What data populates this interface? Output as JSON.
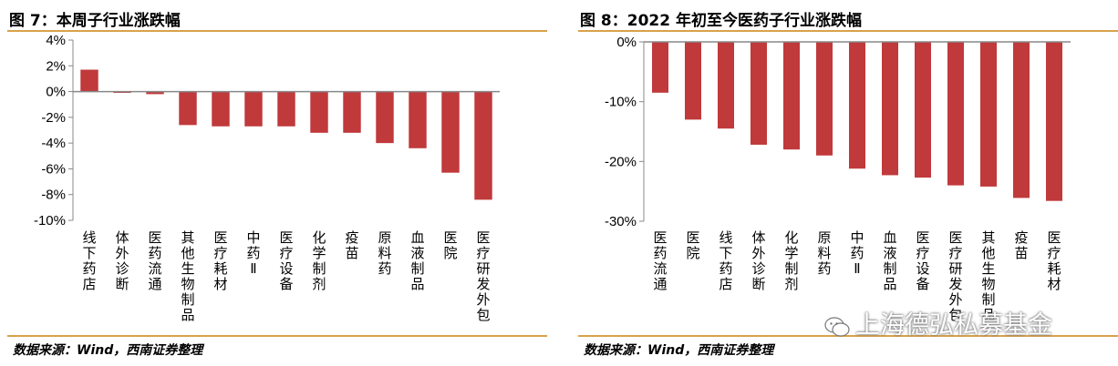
{
  "colors": {
    "bar": "#c0393b",
    "axis": "#888888",
    "rule": "#d8a24a"
  },
  "left": {
    "title": "图 7：本周子行业涨跌幅",
    "source": "数据来源：Wind，西南证券整理"
  },
  "right": {
    "title": "图 8：2022 年初至今医药子行业涨跌幅",
    "source": "数据来源：Wind，西南证券整理"
  },
  "watermark": {
    "text": "上海德弘私募基金",
    "icon": "wechat-icon"
  },
  "chart_data": [
    {
      "type": "bar",
      "title": "图 7：本周子行业涨跌幅",
      "categories": [
        "线下药店",
        "体外诊断",
        "医药流通",
        "其他生物制品",
        "医疗耗材",
        "中药Ⅱ",
        "医疗设备",
        "化学制剂",
        "疫苗",
        "原料药",
        "血液制品",
        "医院",
        "医疗研发外包"
      ],
      "values": [
        1.7,
        -0.1,
        -0.2,
        -2.6,
        -2.7,
        -2.7,
        -2.7,
        -3.2,
        -3.2,
        -4.0,
        -4.4,
        -6.3,
        -8.4
      ],
      "ylim": [
        -10,
        4
      ],
      "yticks": [
        4,
        2,
        0,
        -2,
        -4,
        -6,
        -8,
        -10
      ],
      "ytick_labels": [
        "4%",
        "2%",
        "0%",
        "-2%",
        "-4%",
        "-6%",
        "-8%",
        "-10%"
      ],
      "xlabel": "",
      "ylabel": "",
      "grid": false,
      "legend": "none"
    },
    {
      "type": "bar",
      "title": "图 8：2022 年初至今医药子行业涨跌幅",
      "categories": [
        "医药流通",
        "医院",
        "线下药店",
        "体外诊断",
        "化学制剂",
        "原料药",
        "中药Ⅱ",
        "血液制品",
        "医疗设备",
        "医疗研发外包",
        "其他生物制品",
        "疫苗",
        "医疗耗材"
      ],
      "values": [
        -8.5,
        -13.0,
        -14.5,
        -17.2,
        -18.0,
        -19.0,
        -21.2,
        -22.3,
        -22.7,
        -24.0,
        -24.2,
        -26.1,
        -26.6
      ],
      "ylim": [
        -30,
        0
      ],
      "yticks": [
        0,
        -10,
        -20,
        -30
      ],
      "ytick_labels": [
        "0%",
        "-10%",
        "-20%",
        "-30%"
      ],
      "xlabel": "",
      "ylabel": "",
      "grid": false,
      "legend": "none"
    }
  ]
}
